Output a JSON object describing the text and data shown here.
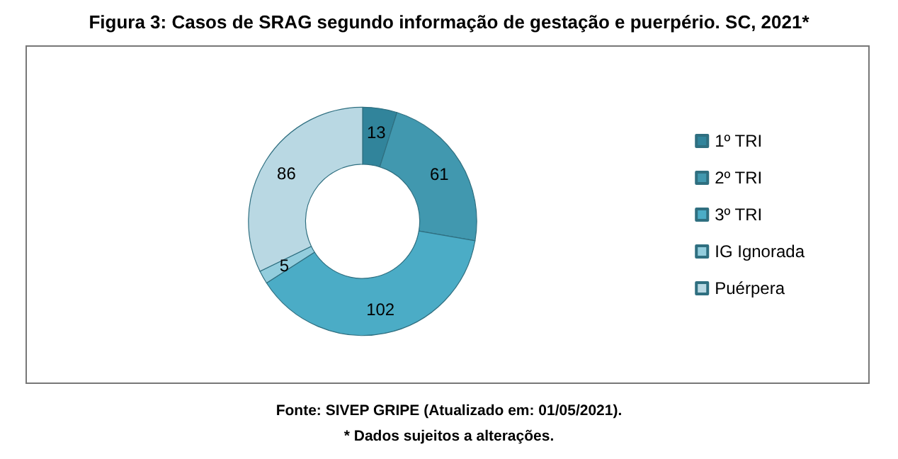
{
  "chart_data": {
    "type": "donut",
    "title": "Figura 3: Casos de SRAG segundo informação de gestação e puerpério. SC, 2021*",
    "categories": [
      "1º TRI",
      "2º TRI",
      "3º TRI",
      "IG Ignorada",
      "Puérpera"
    ],
    "values": [
      13,
      61,
      102,
      5,
      86
    ],
    "colors": [
      "#31849b",
      "#4198af",
      "#4bacc6",
      "#93cddd",
      "#b9d8e3"
    ],
    "data_labels": true,
    "legend": "right",
    "annotations": [
      "Fonte: SIVEP GRIPE (Atualizado em: 01/05/2021).",
      "* Dados sujeitos a alterações."
    ]
  }
}
